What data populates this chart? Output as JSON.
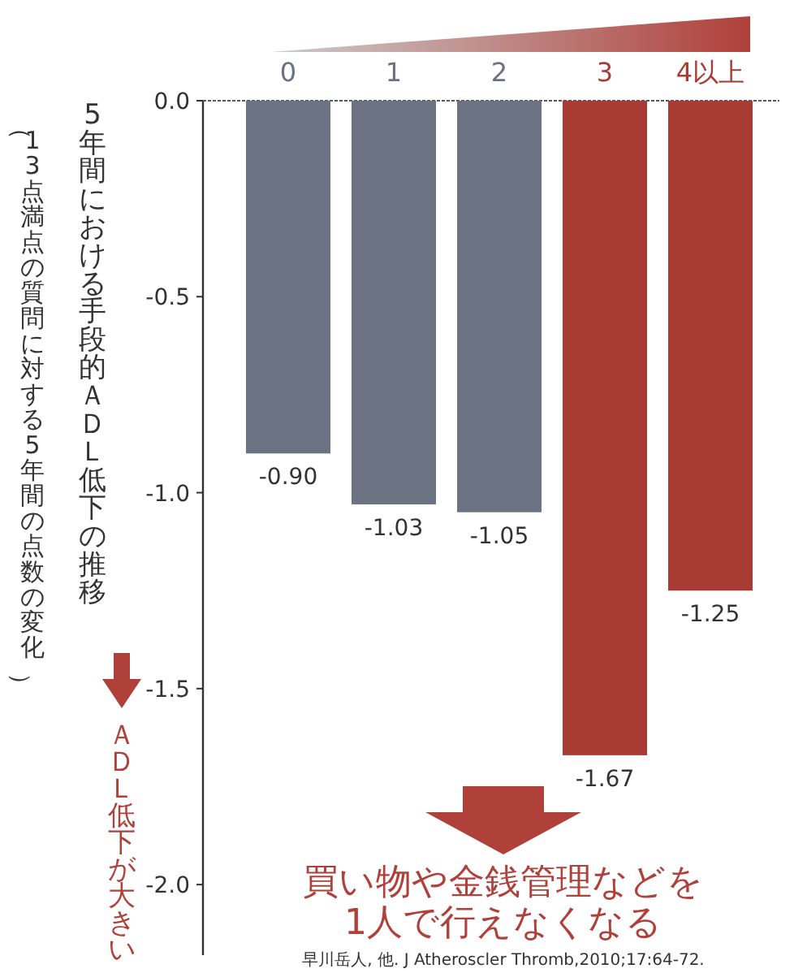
{
  "chart_data": {
    "type": "bar",
    "categories": [
      "0",
      "1",
      "2",
      "3",
      "4以上"
    ],
    "values": [
      -0.9,
      -1.03,
      -1.05,
      -1.67,
      -1.25
    ],
    "colors": [
      "#6b7282",
      "#6b7282",
      "#6b7282",
      "#a83c35",
      "#a83c35"
    ],
    "value_labels": [
      "-0.90",
      "-1.03",
      "-1.05",
      "-1.67",
      "-1.25"
    ],
    "ylabel": "5年間における手段的ＡＤＬ低下の推移",
    "ylim": [
      -2.18,
      0
    ],
    "yticks": [
      {
        "value": 0,
        "label": "0.0"
      },
      -0.5,
      {
        "value": -1,
        "label": "-1.0"
      },
      -1.5,
      {
        "value": -2,
        "label": "-2.0"
      }
    ],
    "annotations": [
      "（13点満点の質問に対する5年間の点数の変化）",
      "ＡＤＬ低下が大きい",
      "買い物や金銭管理などを\n1人で行えなくなる",
      "早川岳人, 他. J Atheroscler Thromb,2010;17:64-72."
    ]
  }
}
